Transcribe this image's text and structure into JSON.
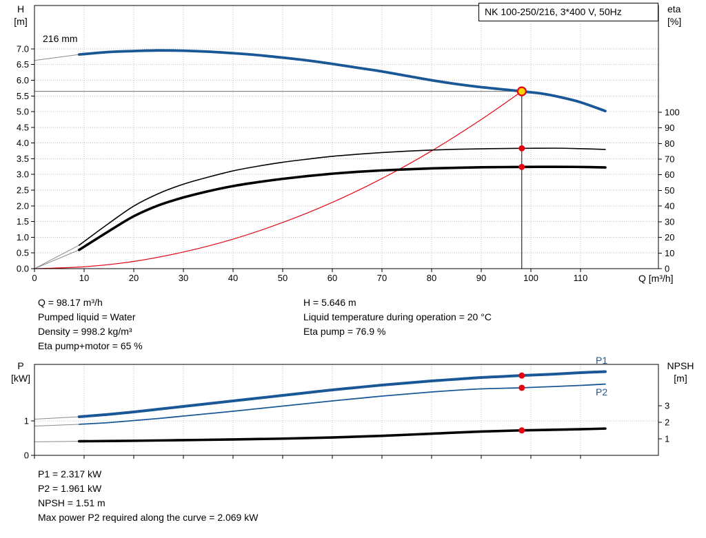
{
  "title_box": "NK 100-250/216, 3*400 V, 50Hz",
  "impeller_label": "216 mm",
  "axis_corner_labels": {
    "top_left_1": "H",
    "top_left_2": "[m]",
    "top_right_1": "eta",
    "top_right_2": "[%]",
    "bottom_left_1": "P",
    "bottom_left_2": "[kW]",
    "bottom_right_1": "NPSH",
    "bottom_right_2": "[m]",
    "x_axis": "Q [m³/h]"
  },
  "series_labels": {
    "p1": "P1",
    "p2": "P2"
  },
  "info_top": {
    "col1": [
      "Q = 98.17 m³/h",
      "Pumped liquid = Water",
      "Density = 998.2 kg/m³",
      "Eta pump+motor = 65 %"
    ],
    "col2": [
      "H = 5.646 m",
      "Liquid temperature during operation = 20 °C",
      "Eta pump = 76.9 %"
    ]
  },
  "info_bottom": [
    "P1 = 2.317 kW",
    "P2 = 1.961 kW",
    "NPSH = 1.51 m",
    "Max power P2 required along the curve = 2.069 kW"
  ],
  "operating_point": {
    "Q_m3h": 98.17,
    "H_m": 5.646,
    "eta_pump_pct": 76.9,
    "eta_pump_motor_pct": 65,
    "P1_kW": 2.317,
    "P2_kW": 1.961,
    "NPSH_m": 1.51,
    "max_P2_along_curve_kW": 2.069,
    "pumped_liquid": "Water",
    "density_kg_m3": 998.2,
    "liquid_temperature_C": 20
  },
  "colors": {
    "blue": "#1a5796",
    "black": "#000000",
    "red": "#e30613",
    "gray": "#8a8a8a",
    "grid": "#bdbdbd",
    "duty_fill": "#ffd500",
    "dot_red": "#e30613",
    "axis": "#000000"
  },
  "chart_data": [
    {
      "id": "head-efficiency",
      "type": "line",
      "title": "NK 100-250/216, 3*400 V, 50Hz",
      "plot": {
        "x0": 50,
        "x1": 955,
        "y0": 8,
        "y1": 390
      },
      "grid": true,
      "x_axis": {
        "label": "Q [m³/h]",
        "range": [
          0,
          125.7
        ],
        "ticks": [
          0,
          10,
          20,
          30,
          40,
          50,
          60,
          70,
          80,
          90,
          100,
          110
        ],
        "labels": [
          "0",
          "10",
          "20",
          "30",
          "40",
          "50",
          "60",
          "70",
          "80",
          "90",
          "100",
          "110"
        ]
      },
      "y_left": {
        "label": "H [m]",
        "range": [
          0,
          8.38
        ],
        "ticks": [
          0,
          0.5,
          1,
          1.5,
          2,
          2.5,
          3,
          3.5,
          4,
          4.5,
          5,
          5.5,
          6,
          6.5,
          7
        ],
        "labels": [
          "0.0",
          "0.5",
          "1.0",
          "1.5",
          "2.0",
          "2.5",
          "3.0",
          "3.5",
          "4.0",
          "4.5",
          "5.0",
          "5.5",
          "6.0",
          "6.5",
          "7.0"
        ]
      },
      "y_right": {
        "label": "eta [%]",
        "range": [
          0,
          168.2
        ],
        "ticks": [
          0,
          10,
          20,
          30,
          40,
          50,
          60,
          70,
          80,
          90,
          100
        ],
        "labels": [
          "0",
          "10",
          "20",
          "30",
          "40",
          "50",
          "60",
          "70",
          "80",
          "90",
          "100"
        ]
      },
      "annotation": "216 mm",
      "duty_lines": {
        "q": 98.17,
        "v": 5.646,
        "axis": "left"
      },
      "series": [
        {
          "name": "system-curve",
          "axis": "left",
          "color": "red",
          "width": 1.2,
          "points": [
            [
              0,
              0
            ],
            [
              10,
              0.06
            ],
            [
              20,
              0.23
            ],
            [
              30,
              0.53
            ],
            [
              40,
              0.94
            ],
            [
              50,
              1.47
            ],
            [
              60,
              2.11
            ],
            [
              70,
              2.87
            ],
            [
              80,
              3.75
            ],
            [
              90,
              4.75
            ],
            [
              98.17,
              5.646
            ]
          ]
        },
        {
          "name": "eta-pump-ext-line",
          "axis": "right",
          "color": "gray",
          "width": 1,
          "points": [
            [
              0,
              0
            ],
            [
              9,
              15
            ]
          ]
        },
        {
          "name": "eta-pump-motor-ext-line",
          "axis": "right",
          "color": "gray",
          "width": 1,
          "points": [
            [
              0,
              0
            ],
            [
              9,
              12
            ]
          ]
        },
        {
          "name": "eta-pump-curve",
          "axis": "right",
          "color": "black",
          "width": 1.6,
          "points": [
            [
              9,
              15
            ],
            [
              15,
              29
            ],
            [
              20,
              40
            ],
            [
              25,
              48
            ],
            [
              30,
              54
            ],
            [
              35,
              58.5
            ],
            [
              40,
              62.5
            ],
            [
              45,
              65.5
            ],
            [
              50,
              68
            ],
            [
              55,
              70
            ],
            [
              60,
              71.8
            ],
            [
              65,
              73.1
            ],
            [
              70,
              74.2
            ],
            [
              75,
              75.1
            ],
            [
              80,
              75.8
            ],
            [
              85,
              76.3
            ],
            [
              90,
              76.6
            ],
            [
              95,
              76.8
            ],
            [
              98.17,
              76.9
            ],
            [
              105,
              77
            ],
            [
              110,
              76.7
            ],
            [
              115,
              76.2
            ]
          ]
        },
        {
          "name": "eta-pump-motor-curve",
          "axis": "right",
          "color": "black",
          "width": 3.6,
          "points": [
            [
              9,
              12
            ],
            [
              15,
              24
            ],
            [
              20,
              33.5
            ],
            [
              25,
              40.5
            ],
            [
              30,
              45.5
            ],
            [
              35,
              49.5
            ],
            [
              40,
              52.8
            ],
            [
              45,
              55.3
            ],
            [
              50,
              57.4
            ],
            [
              55,
              59.2
            ],
            [
              60,
              60.7
            ],
            [
              65,
              61.9
            ],
            [
              70,
              62.8
            ],
            [
              75,
              63.5
            ],
            [
              80,
              64.1
            ],
            [
              85,
              64.5
            ],
            [
              90,
              64.8
            ],
            [
              95,
              64.95
            ],
            [
              98.17,
              65
            ],
            [
              105,
              65.1
            ],
            [
              110,
              65
            ],
            [
              115,
              64.7
            ]
          ]
        },
        {
          "name": "head-ext-line",
          "axis": "left",
          "color": "gray",
          "width": 1,
          "points": [
            [
              0,
              6.63
            ],
            [
              9,
              6.82
            ]
          ]
        },
        {
          "name": "head-curve-216mm",
          "axis": "left",
          "color": "blue",
          "width": 3.8,
          "points": [
            [
              9,
              6.82
            ],
            [
              15,
              6.9
            ],
            [
              20,
              6.93
            ],
            [
              25,
              6.95
            ],
            [
              30,
              6.94
            ],
            [
              35,
              6.91
            ],
            [
              40,
              6.86
            ],
            [
              45,
              6.8
            ],
            [
              50,
              6.72
            ],
            [
              55,
              6.63
            ],
            [
              60,
              6.52
            ],
            [
              65,
              6.4
            ],
            [
              70,
              6.28
            ],
            [
              75,
              6.14
            ],
            [
              80,
              6.0
            ],
            [
              85,
              5.88
            ],
            [
              90,
              5.78
            ],
            [
              95,
              5.7
            ],
            [
              98.17,
              5.646
            ],
            [
              102,
              5.58
            ],
            [
              106,
              5.46
            ],
            [
              110,
              5.3
            ],
            [
              115,
              5.02
            ]
          ]
        }
      ],
      "markers": [
        {
          "name": "eta-pump-dot",
          "type": "dot",
          "axis": "right",
          "q": 98.17,
          "v": 76.9
        },
        {
          "name": "eta-pump-motor-dot",
          "type": "dot",
          "axis": "right",
          "q": 98.17,
          "v": 65
        },
        {
          "name": "duty-point",
          "type": "duty",
          "axis": "left",
          "q": 98.17,
          "v": 5.646
        }
      ]
    },
    {
      "id": "power-npsh",
      "type": "line",
      "title": "",
      "plot": {
        "x0": 50,
        "x1": 955,
        "y0": 529,
        "y1": 661
      },
      "grid": true,
      "x_axis": {
        "label": "",
        "range": [
          0,
          125.7
        ],
        "ticks": [
          0,
          10,
          20,
          30,
          40,
          50,
          60,
          70,
          80,
          90,
          100,
          110
        ]
      },
      "y_left": {
        "label": "P [kW]",
        "range": [
          0,
          2.64
        ],
        "ticks": [
          0,
          1
        ],
        "labels": [
          "0",
          "1"
        ]
      },
      "y_right": {
        "label": "NPSH [m]",
        "range": [
          0,
          5.5
        ],
        "ticks": [
          1,
          2,
          3
        ],
        "labels": [
          "1",
          "2",
          "3"
        ]
      },
      "series": [
        {
          "name": "p2-ext-line",
          "axis": "left",
          "color": "gray",
          "width": 1,
          "points": [
            [
              0,
              0.85
            ],
            [
              9,
              0.9
            ]
          ]
        },
        {
          "name": "p2-curve",
          "axis": "left",
          "color": "blue",
          "width": 1.8,
          "points": [
            [
              9,
              0.9
            ],
            [
              15,
              0.95
            ],
            [
              20,
              1.01
            ],
            [
              25,
              1.07
            ],
            [
              30,
              1.14
            ],
            [
              35,
              1.21
            ],
            [
              40,
              1.28
            ],
            [
              45,
              1.355
            ],
            [
              50,
              1.43
            ],
            [
              55,
              1.505
            ],
            [
              60,
              1.58
            ],
            [
              65,
              1.65
            ],
            [
              70,
              1.72
            ],
            [
              75,
              1.78
            ],
            [
              80,
              1.84
            ],
            [
              85,
              1.89
            ],
            [
              90,
              1.93
            ],
            [
              95,
              1.95
            ],
            [
              98.17,
              1.961
            ],
            [
              105,
              2.0
            ],
            [
              110,
              2.03
            ],
            [
              115,
              2.069
            ]
          ]
        },
        {
          "name": "p1-ext-line",
          "axis": "left",
          "color": "gray",
          "width": 1,
          "points": [
            [
              0,
              1.05
            ],
            [
              9,
              1.12
            ]
          ]
        },
        {
          "name": "p1-curve",
          "axis": "left",
          "color": "blue",
          "width": 4,
          "points": [
            [
              9,
              1.12
            ],
            [
              15,
              1.19
            ],
            [
              20,
              1.26
            ],
            [
              25,
              1.34
            ],
            [
              30,
              1.42
            ],
            [
              35,
              1.5
            ],
            [
              40,
              1.58
            ],
            [
              45,
              1.66
            ],
            [
              50,
              1.74
            ],
            [
              55,
              1.82
            ],
            [
              60,
              1.9
            ],
            [
              65,
              1.97
            ],
            [
              70,
              2.04
            ],
            [
              75,
              2.1
            ],
            [
              80,
              2.16
            ],
            [
              85,
              2.21
            ],
            [
              90,
              2.26
            ],
            [
              95,
              2.295
            ],
            [
              98.17,
              2.317
            ],
            [
              105,
              2.36
            ],
            [
              110,
              2.4
            ],
            [
              115,
              2.43
            ]
          ]
        },
        {
          "name": "npsh-ext-line",
          "axis": "right",
          "color": "gray",
          "width": 1,
          "points": [
            [
              0,
              0.82
            ],
            [
              9,
              0.85
            ]
          ]
        },
        {
          "name": "npsh-curve",
          "axis": "right",
          "color": "black",
          "width": 3.6,
          "points": [
            [
              9,
              0.85
            ],
            [
              20,
              0.88
            ],
            [
              30,
              0.92
            ],
            [
              40,
              0.96
            ],
            [
              50,
              1.01
            ],
            [
              60,
              1.08
            ],
            [
              70,
              1.18
            ],
            [
              80,
              1.31
            ],
            [
              90,
              1.44
            ],
            [
              98.17,
              1.51
            ],
            [
              105,
              1.55
            ],
            [
              110,
              1.58
            ],
            [
              115,
              1.62
            ]
          ]
        }
      ],
      "markers": [
        {
          "name": "p1-dot",
          "type": "dot",
          "axis": "left",
          "q": 98.17,
          "v": 2.317
        },
        {
          "name": "p2-dot",
          "type": "dot",
          "axis": "left",
          "q": 98.17,
          "v": 1.961
        },
        {
          "name": "npsh-dot",
          "type": "dot",
          "axis": "right",
          "q": 98.17,
          "v": 1.51
        }
      ]
    }
  ]
}
